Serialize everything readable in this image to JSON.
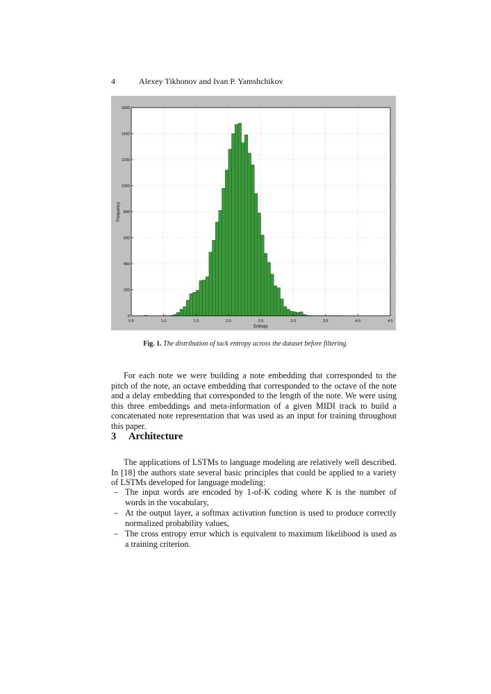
{
  "header": {
    "page_number": "4",
    "authors": "Alexey Tikhonov and Ivan P. Yamshchikov"
  },
  "figure": {
    "caption_label": "Fig. 1.",
    "caption_text": "The distribution of tack entropy across the dataset before filtering."
  },
  "chart_data": {
    "type": "bar",
    "title": "",
    "xlabel": "Entropy",
    "ylabel": "Frequency",
    "xlim": [
      0.5,
      4.5
    ],
    "ylim": [
      0,
      1600
    ],
    "x_ticks": [
      "0.5",
      "1.0",
      "1.5",
      "2.0",
      "2.5",
      "3.0",
      "3.5",
      "4.0",
      "4.5"
    ],
    "y_ticks": [
      "0",
      "200",
      "400",
      "600",
      "800",
      "1000",
      "1200",
      "1400",
      "1600"
    ],
    "grid": true,
    "bar_color": "#3a9a3a",
    "bin_width": 0.05,
    "bin_starts": [
      0.7,
      1.0,
      1.1,
      1.15,
      1.2,
      1.25,
      1.3,
      1.35,
      1.4,
      1.45,
      1.5,
      1.55,
      1.6,
      1.65,
      1.7,
      1.75,
      1.8,
      1.85,
      1.9,
      1.95,
      2.0,
      2.05,
      2.1,
      2.15,
      2.2,
      2.25,
      2.3,
      2.35,
      2.4,
      2.45,
      2.5,
      2.55,
      2.6,
      2.65,
      2.7,
      2.75,
      2.8,
      2.85,
      2.9,
      2.95,
      3.0,
      3.05,
      3.1,
      3.15,
      3.2,
      3.25,
      3.3,
      3.35,
      3.4,
      3.45,
      3.5,
      3.55,
      3.6,
      3.65,
      3.7
    ],
    "values": [
      3,
      2,
      3,
      10,
      25,
      50,
      70,
      120,
      170,
      180,
      195,
      270,
      275,
      300,
      490,
      580,
      720,
      810,
      980,
      1120,
      1280,
      1400,
      1470,
      1480,
      1330,
      1390,
      1250,
      1160,
      940,
      790,
      620,
      480,
      410,
      320,
      230,
      215,
      130,
      70,
      50,
      35,
      30,
      25,
      30,
      10,
      3,
      2,
      1,
      1,
      1,
      1,
      1,
      1,
      1,
      1,
      1
    ]
  },
  "body": {
    "paragraph1": "For each note we were building a note embedding that corresponded to the pitch of the note, an octave embedding that corresponded to the octave of the note and a delay embedding that corresponded to the length of the note. We were using this three embeddings and meta-information of a given MIDI track to build a concatenated note representation that was used as an input for training throughout this paper.",
    "section_number": "3",
    "section_title": "Architecture",
    "paragraph2": "The applications of LSTMs to language modeling are relatively well described. In [18] the authors state several basic principles that could be applied to a variety of LSTMs developed for language modeling:",
    "bullet_marker": "–",
    "bullets": [
      "The input words are encoded by 1-of-K coding where K is the number of words in the vocabulary,",
      "At the output layer, a softmax activation function is used to produce correctly normalized probability values,",
      "The cross entropy error which is equivalent to maximum likelihood is used as a training criterion."
    ]
  }
}
